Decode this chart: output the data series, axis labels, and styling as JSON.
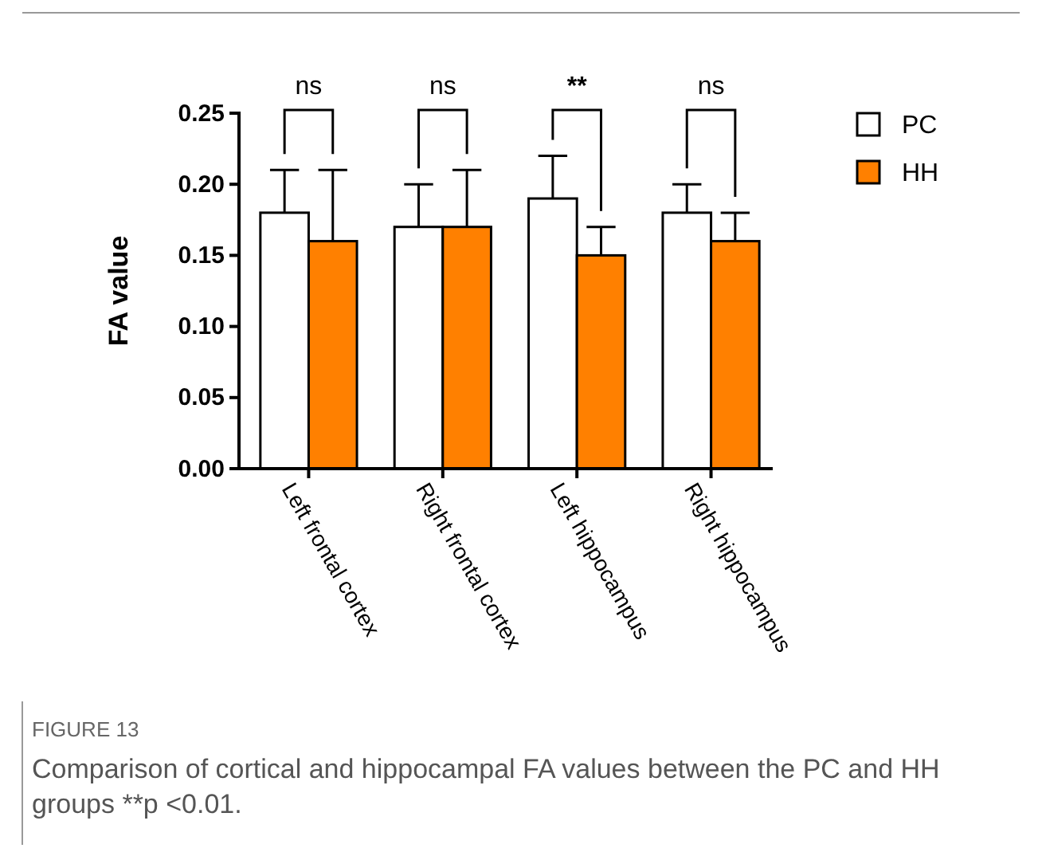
{
  "chart_data": {
    "type": "bar",
    "ylabel": "FA  value",
    "categories": [
      "Left frontal cortex",
      "Right  frontal cortex",
      "Left hippocampus",
      "Right  hippocampus"
    ],
    "series": [
      {
        "name": "PC",
        "color": "#ffffff",
        "values": [
          0.18,
          0.17,
          0.19,
          0.18
        ],
        "errors": [
          [
            0.18,
            0.21
          ],
          [
            0.17,
            0.2
          ],
          [
            0.19,
            0.22
          ],
          [
            0.18,
            0.2
          ]
        ]
      },
      {
        "name": "HH",
        "color": "#ff8000",
        "values": [
          0.16,
          0.17,
          0.15,
          0.16
        ],
        "errors": [
          [
            0.16,
            0.21
          ],
          [
            0.17,
            0.21
          ],
          [
            0.15,
            0.17
          ],
          [
            0.16,
            0.18
          ]
        ]
      }
    ],
    "ylim": [
      0,
      0.25
    ],
    "yticks": [
      {
        "value": 0,
        "label": "0.00"
      },
      {
        "value": 0.05,
        "label": "0.05"
      },
      {
        "value": 0.1,
        "label": "0.10"
      },
      {
        "value": 0.15,
        "label": "0.15"
      },
      {
        "value": 0.2,
        "label": "0.20"
      },
      {
        "value": 0.25,
        "label": "0.25"
      }
    ],
    "legend": "top right",
    "grid": false,
    "annotations": [
      "ns",
      "ns",
      "**",
      "ns",
      "FIGURE 13",
      "Comparison of cortical and hippocampal FA values between the PC and HH groups **p <0.01."
    ]
  }
}
